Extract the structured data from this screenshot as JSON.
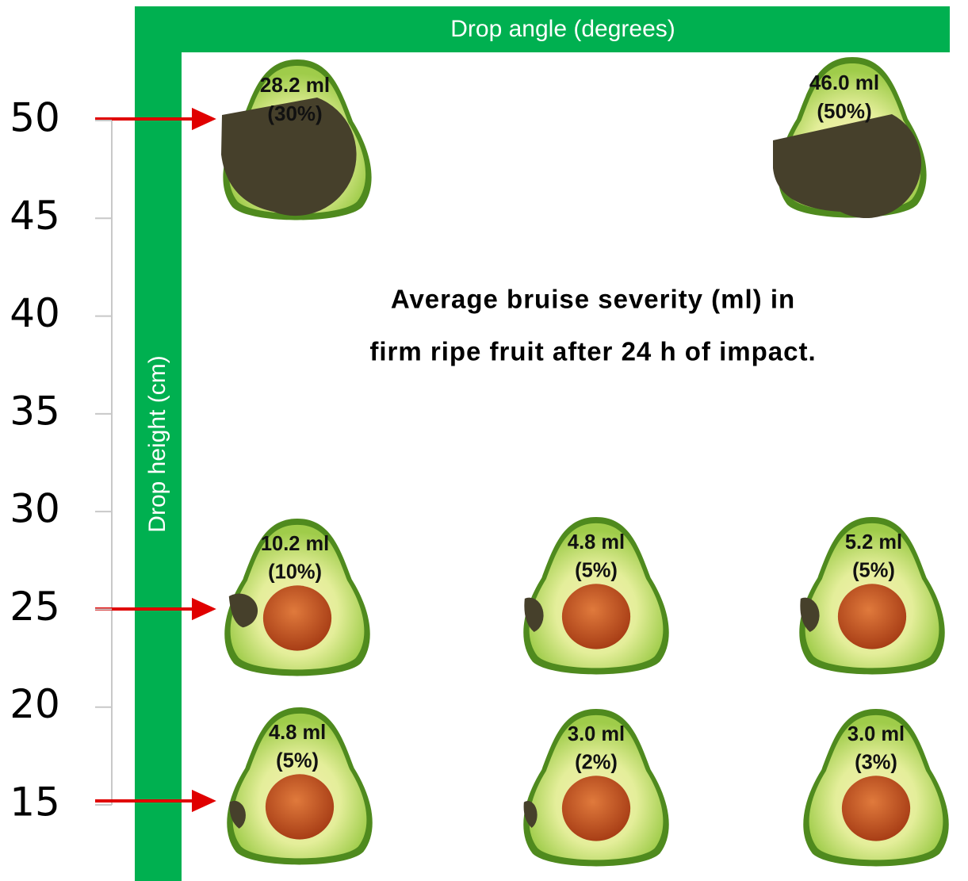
{
  "title_lines": [
    "Average bruise severity (ml) in",
    "firm ripe fruit after 24 h of impact."
  ],
  "x_axis_label": "Drop angle (degrees)",
  "y_axis_label": "Drop height (cm)",
  "y_ticks": [
    50,
    45,
    40,
    35,
    30,
    25,
    20,
    15
  ],
  "fruits": [
    {
      "volume": "28.2 ml",
      "percent": "(30%)"
    },
    {
      "volume": "46.0 ml",
      "percent": "(50%)"
    },
    {
      "volume": "10.2 ml",
      "percent": "(10%)"
    },
    {
      "volume": "4.8 ml",
      "percent": "(5%)"
    },
    {
      "volume": "5.2 ml",
      "percent": "(5%)"
    },
    {
      "volume": "4.8 ml",
      "percent": "(5%)"
    },
    {
      "volume": "3.0 ml",
      "percent": "(2%)"
    },
    {
      "volume": "3.0 ml",
      "percent": "(3%)"
    }
  ]
}
